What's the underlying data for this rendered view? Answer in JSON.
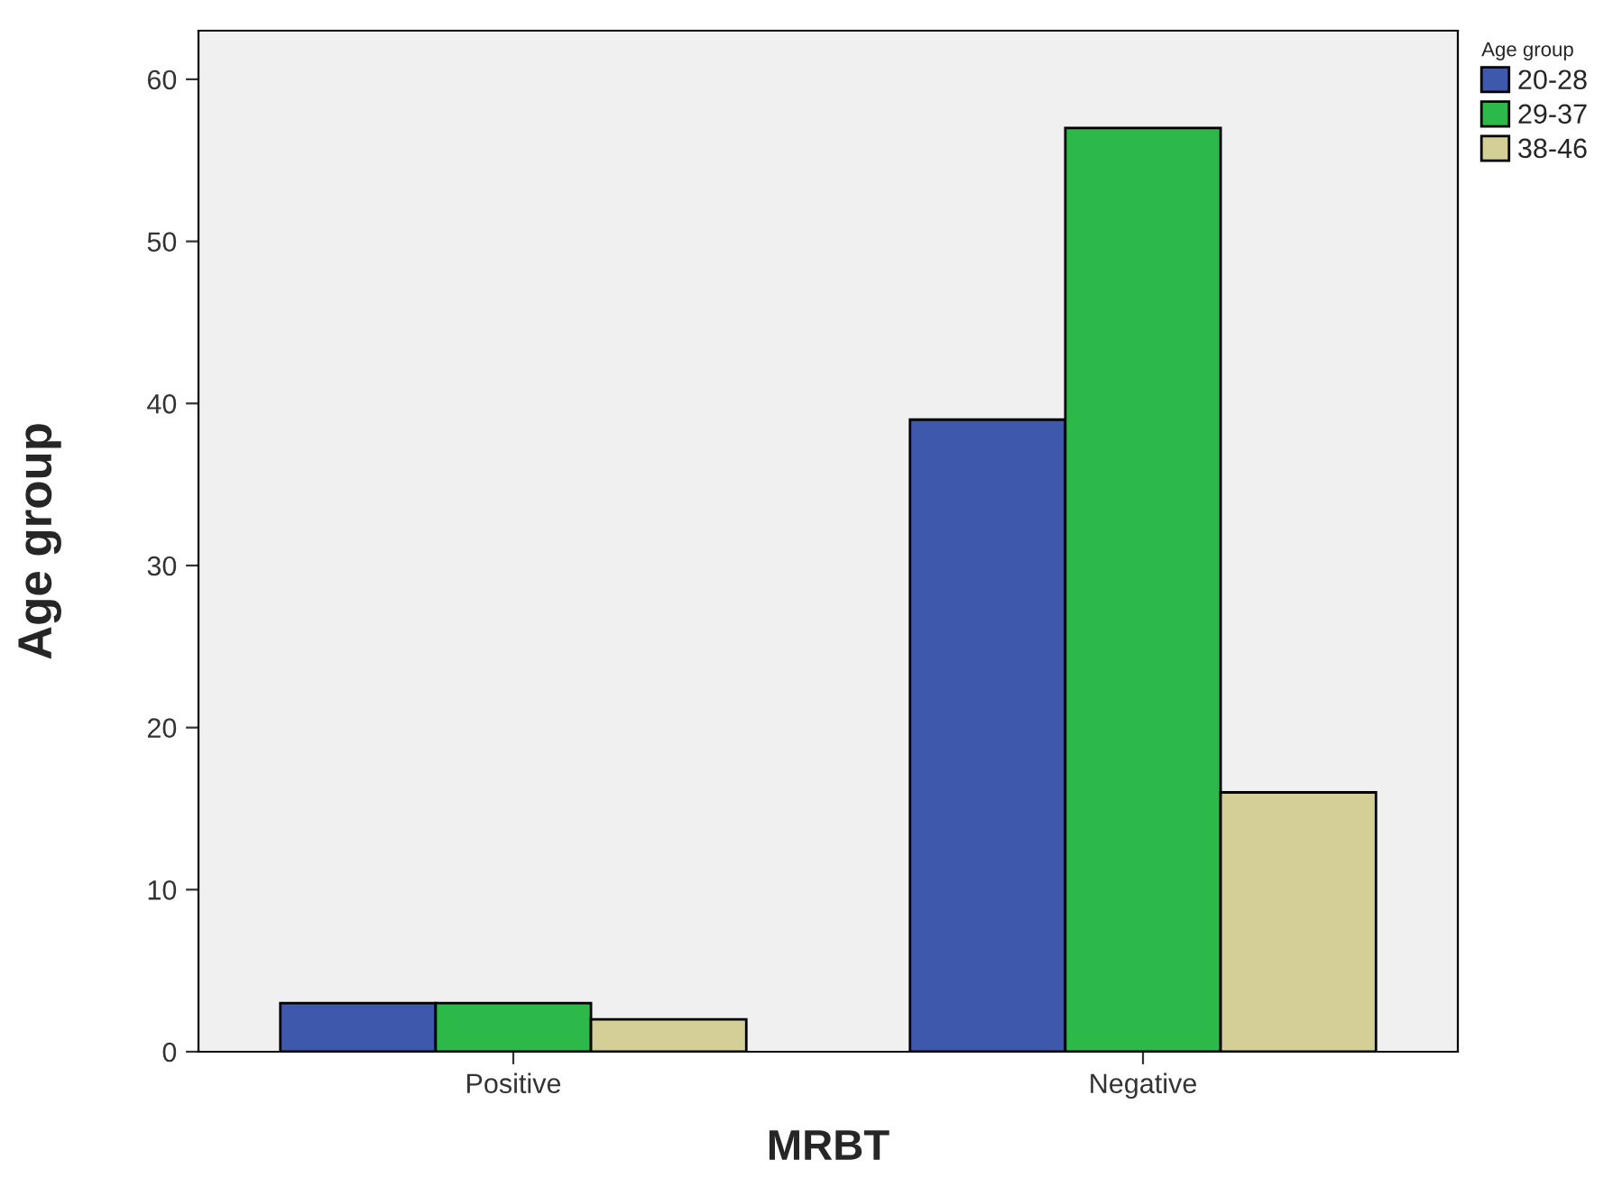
{
  "chart_data": {
    "type": "bar",
    "xlabel": "MRBT",
    "ylabel": "Age group",
    "legend_title": "Age group",
    "categories": [
      "Positive",
      "Negative"
    ],
    "series": [
      {
        "name": "20-28",
        "color": "#3e58ac",
        "values": [
          3,
          39
        ]
      },
      {
        "name": "29-37",
        "color": "#2db84a",
        "values": [
          3,
          57
        ]
      },
      {
        "name": "38-46",
        "color": "#d4cf96",
        "values": [
          2,
          16
        ]
      }
    ],
    "ylim": [
      0,
      63
    ],
    "yticks": [
      0,
      10,
      20,
      30,
      40,
      50,
      60
    ],
    "grid": false,
    "legend": "top right"
  }
}
